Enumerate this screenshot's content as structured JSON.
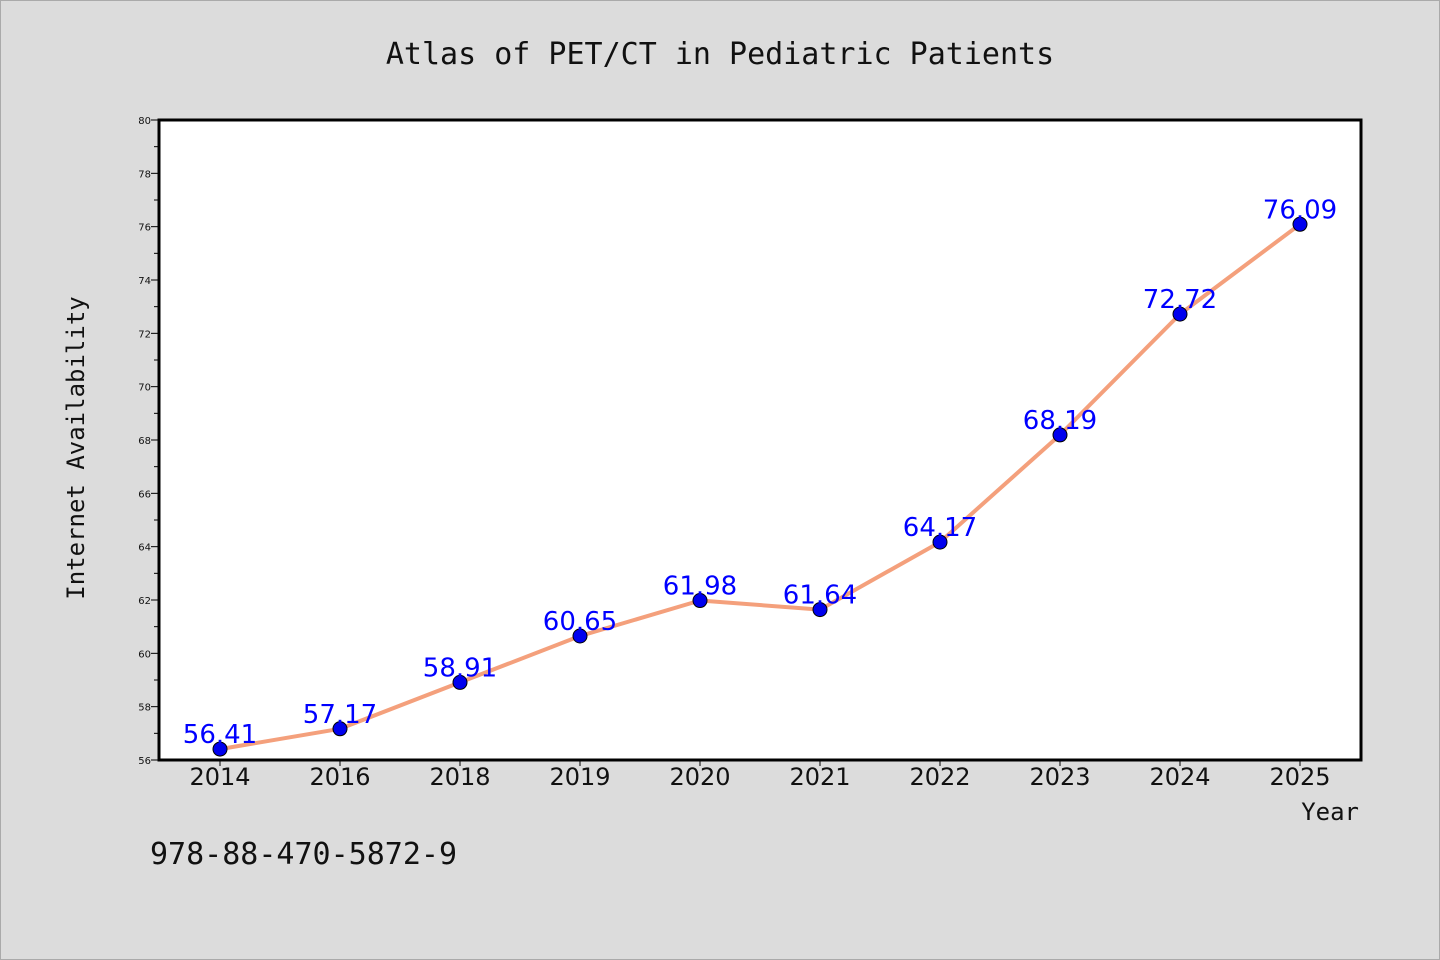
{
  "chart_data": {
    "type": "line",
    "title": "Atlas of PET/CT in Pediatric Patients",
    "xlabel": "Year",
    "ylabel": "Internet Availability",
    "categories": [
      "2014",
      "2016",
      "2018",
      "2019",
      "2020",
      "2021",
      "2022",
      "2023",
      "2024",
      "2025"
    ],
    "values": [
      56.41,
      57.17,
      58.91,
      60.65,
      61.98,
      61.64,
      64.17,
      68.19,
      72.72,
      76.09
    ],
    "value_labels": [
      "56.41",
      "57.17",
      "58.91",
      "60.65",
      "61.98",
      "61.64",
      "64.17",
      "68.19",
      "72.72",
      "76.09"
    ],
    "ylim": [
      56,
      80
    ],
    "yticks": [
      "56",
      "58",
      "60",
      "62",
      "64",
      "66",
      "68",
      "70",
      "72",
      "74",
      "76",
      "78",
      "80"
    ],
    "grid": false,
    "line_color": "#f4a07c",
    "marker_color": "#0000ee",
    "label_color": "#0000ff"
  },
  "footer": {
    "isbn": "978-88-470-5872-9"
  }
}
